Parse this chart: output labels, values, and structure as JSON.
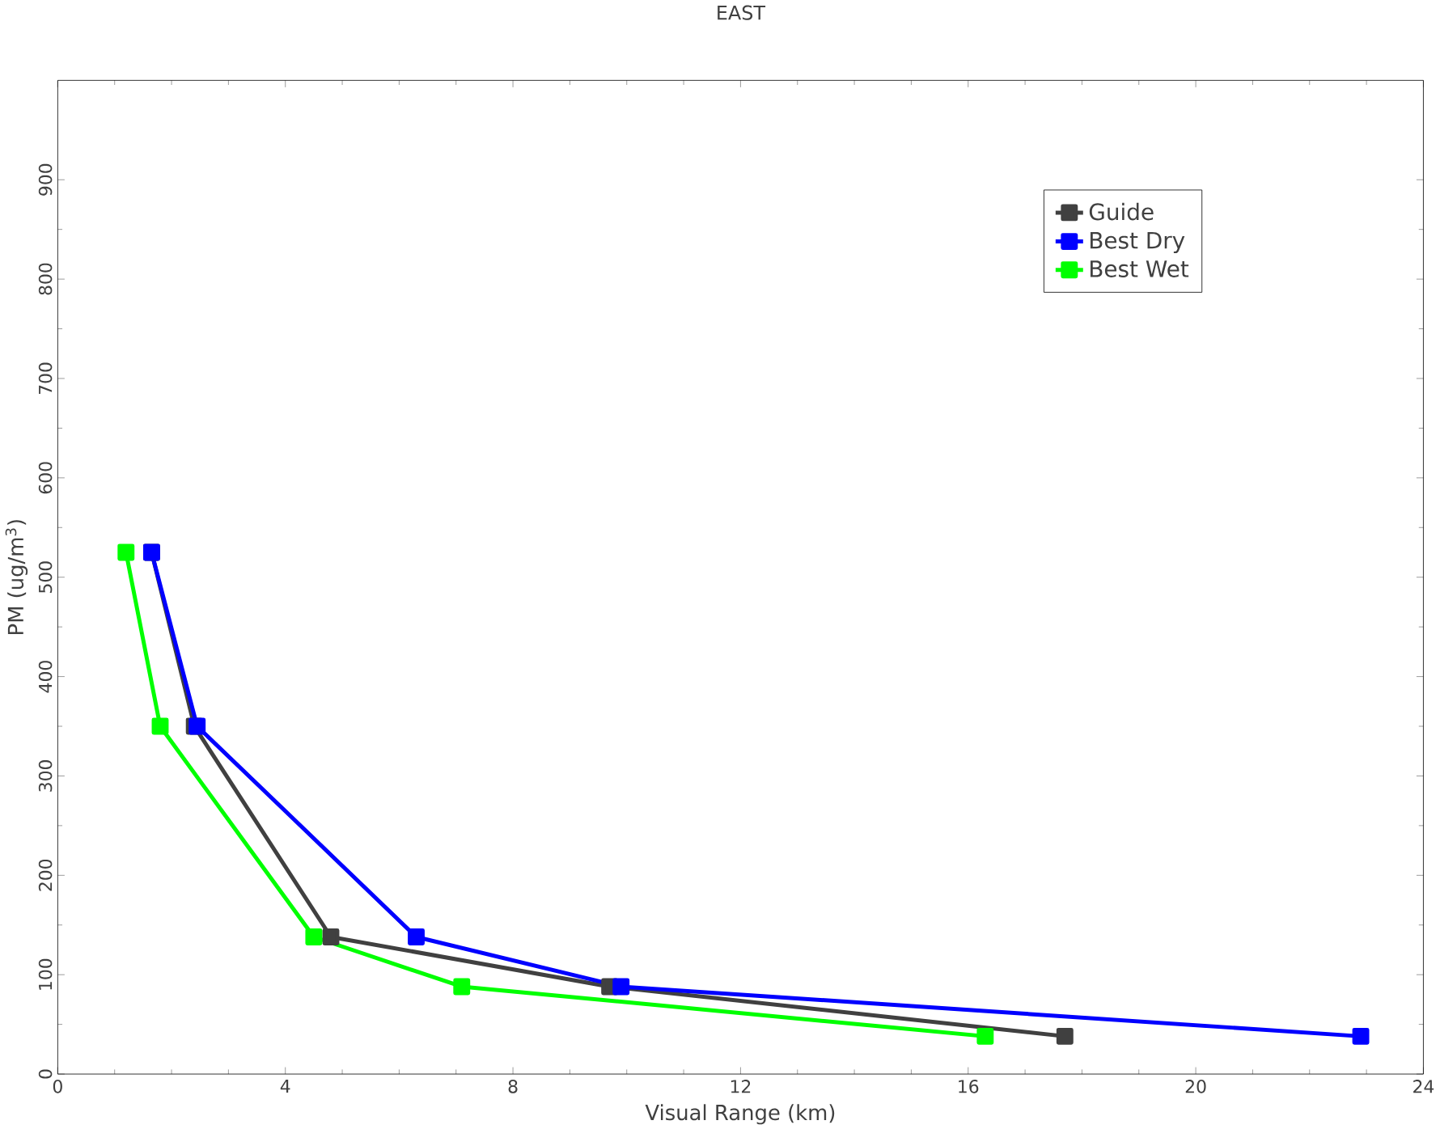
{
  "chart_data": {
    "type": "line",
    "title": "EAST",
    "xlabel": "Visual Range (km)",
    "ylabel": "PM (ug/m$^{3}$)",
    "xlim": [
      0,
      24
    ],
    "ylim": [
      0,
      1000
    ],
    "xticks": [
      0,
      4,
      8,
      12,
      16,
      20,
      24
    ],
    "yticks": [
      0,
      100,
      200,
      300,
      400,
      500,
      600,
      700,
      800,
      900
    ],
    "marker": "square",
    "legend": "top right",
    "grid": false,
    "series": [
      {
        "name": "Guide",
        "color": "#404040",
        "x": [
          1.65,
          2.4,
          4.8,
          9.7,
          17.7
        ],
        "values": [
          525,
          350,
          138,
          88,
          38
        ]
      },
      {
        "name": "Best Dry",
        "color": "#0000ff",
        "x": [
          1.65,
          2.45,
          6.3,
          9.9,
          22.9
        ],
        "values": [
          525,
          350,
          138,
          88,
          38
        ]
      },
      {
        "name": "Best Wet",
        "color": "#00ff00",
        "x": [
          1.2,
          1.8,
          4.5,
          7.1,
          16.3
        ],
        "values": [
          525,
          350,
          138,
          88,
          38
        ]
      }
    ]
  }
}
